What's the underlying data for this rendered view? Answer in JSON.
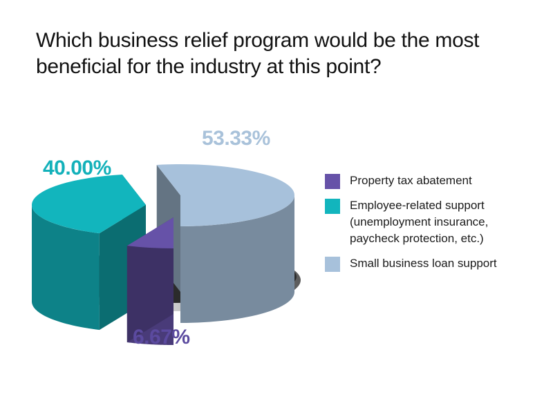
{
  "chart_data": {
    "type": "pie",
    "title": "Which business relief program would be the most beneficial for the industry at this point?",
    "categories": [
      "Property tax abatement",
      "Employee-related support\n(unemployment insurance,\npaycheck protection, etc.)",
      "Small business loan support"
    ],
    "values": [
      6.67,
      40.0,
      53.33
    ],
    "data_labels": [
      "6.67%",
      "40.00%",
      "53.33%"
    ],
    "colors": [
      "#6652a8",
      "#12b5bd",
      "#a7c1db"
    ],
    "legend_position": "right"
  }
}
